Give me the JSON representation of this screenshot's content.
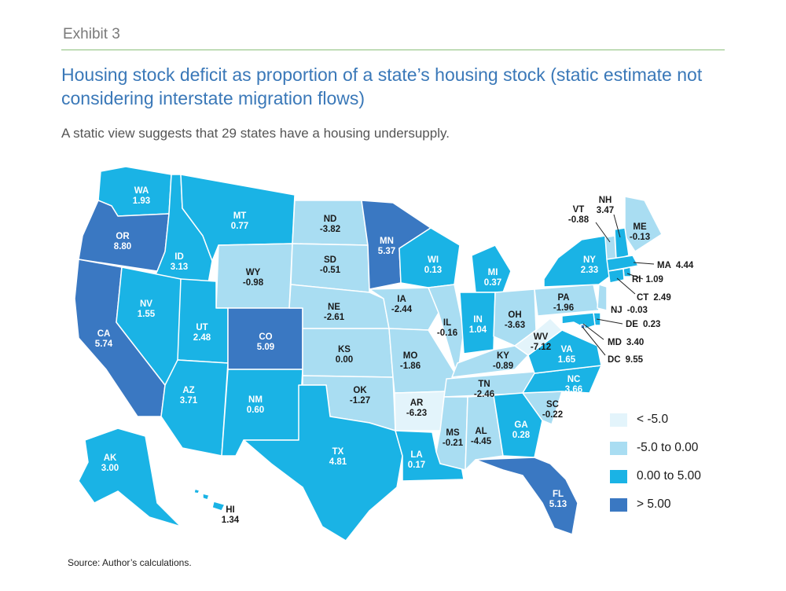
{
  "exhibit": "Exhibit 3",
  "title": "Housing stock deficit as proportion of a state’s housing stock (static estimate not considering interstate migration flows)",
  "subtitle": "A static view suggests that 29 states have a housing undersupply.",
  "source": "Source: Author’s calculations.",
  "colors": {
    "bin_lt_neg5": "#e3f4fb",
    "bin_neg5_to_0": "#a9ddf2",
    "bin_0_to_5": "#1ab3e5",
    "bin_gt_5": "#3a78c2"
  },
  "legend": [
    {
      "label": "< -5.0",
      "color": "#e3f4fb"
    },
    {
      "label": "-5.0 to 0.00",
      "color": "#a9ddf2"
    },
    {
      "label": "0.00 to 5.00",
      "color": "#1ab3e5"
    },
    {
      "label": "> 5.00",
      "color": "#3a78c2"
    }
  ],
  "states": {
    "WA": {
      "abbr": "WA",
      "value": "1.93"
    },
    "OR": {
      "abbr": "OR",
      "value": "8.80"
    },
    "CA": {
      "abbr": "CA",
      "value": "5.74"
    },
    "ID": {
      "abbr": "ID",
      "value": "3.13"
    },
    "NV": {
      "abbr": "NV",
      "value": "1.55"
    },
    "MT": {
      "abbr": "MT",
      "value": "0.77"
    },
    "WY": {
      "abbr": "WY",
      "value": "-0.98"
    },
    "UT": {
      "abbr": "UT",
      "value": "2.48"
    },
    "AZ": {
      "abbr": "AZ",
      "value": "3.71"
    },
    "CO": {
      "abbr": "CO",
      "value": "5.09"
    },
    "NM": {
      "abbr": "NM",
      "value": "0.60"
    },
    "ND": {
      "abbr": "ND",
      "value": "-3.82"
    },
    "SD": {
      "abbr": "SD",
      "value": "-0.51"
    },
    "NE": {
      "abbr": "NE",
      "value": "-2.61"
    },
    "KS": {
      "abbr": "KS",
      "value": "0.00"
    },
    "OK": {
      "abbr": "OK",
      "value": "-1.27"
    },
    "TX": {
      "abbr": "TX",
      "value": "4.81"
    },
    "MN": {
      "abbr": "MN",
      "value": "5.37"
    },
    "IA": {
      "abbr": "IA",
      "value": "-2.44"
    },
    "MO": {
      "abbr": "MO",
      "value": "-1.86"
    },
    "AR": {
      "abbr": "AR",
      "value": "-6.23"
    },
    "LA": {
      "abbr": "LA",
      "value": "0.17"
    },
    "WI": {
      "abbr": "WI",
      "value": "0.13"
    },
    "IL": {
      "abbr": "IL",
      "value": "-0.16"
    },
    "MI": {
      "abbr": "MI",
      "value": "0.37"
    },
    "IN": {
      "abbr": "IN",
      "value": "1.04"
    },
    "OH": {
      "abbr": "OH",
      "value": "-3.63"
    },
    "KY": {
      "abbr": "KY",
      "value": "-0.89"
    },
    "TN": {
      "abbr": "TN",
      "value": "-2.46"
    },
    "MS": {
      "abbr": "MS",
      "value": "-0.21"
    },
    "AL": {
      "abbr": "AL",
      "value": "-4.45"
    },
    "GA": {
      "abbr": "GA",
      "value": "0.28"
    },
    "FL": {
      "abbr": "FL",
      "value": "5.13"
    },
    "SC": {
      "abbr": "SC",
      "value": "-0.22"
    },
    "NC": {
      "abbr": "NC",
      "value": "3.66"
    },
    "VA": {
      "abbr": "VA",
      "value": "1.65"
    },
    "WV": {
      "abbr": "WV",
      "value": "-7.12"
    },
    "PA": {
      "abbr": "PA",
      "value": "-1.96"
    },
    "NY": {
      "abbr": "NY",
      "value": "2.33"
    },
    "ME": {
      "abbr": "ME",
      "value": "-0.13"
    },
    "VT": {
      "abbr": "VT",
      "value": "-0.88"
    },
    "NH": {
      "abbr": "NH",
      "value": "3.47"
    },
    "MA": {
      "abbr": "MA",
      "value": "4.44"
    },
    "RI": {
      "abbr": "RI",
      "value": "1.09"
    },
    "CT": {
      "abbr": "CT",
      "value": "2.49"
    },
    "NJ": {
      "abbr": "NJ",
      "value": "-0.03"
    },
    "DE": {
      "abbr": "DE",
      "value": "0.23"
    },
    "MD": {
      "abbr": "MD",
      "value": "3.40"
    },
    "DC": {
      "abbr": "DC",
      "value": "9.55"
    },
    "AK": {
      "abbr": "AK",
      "value": "3.00"
    },
    "HI": {
      "abbr": "HI",
      "value": "1.34"
    }
  }
}
